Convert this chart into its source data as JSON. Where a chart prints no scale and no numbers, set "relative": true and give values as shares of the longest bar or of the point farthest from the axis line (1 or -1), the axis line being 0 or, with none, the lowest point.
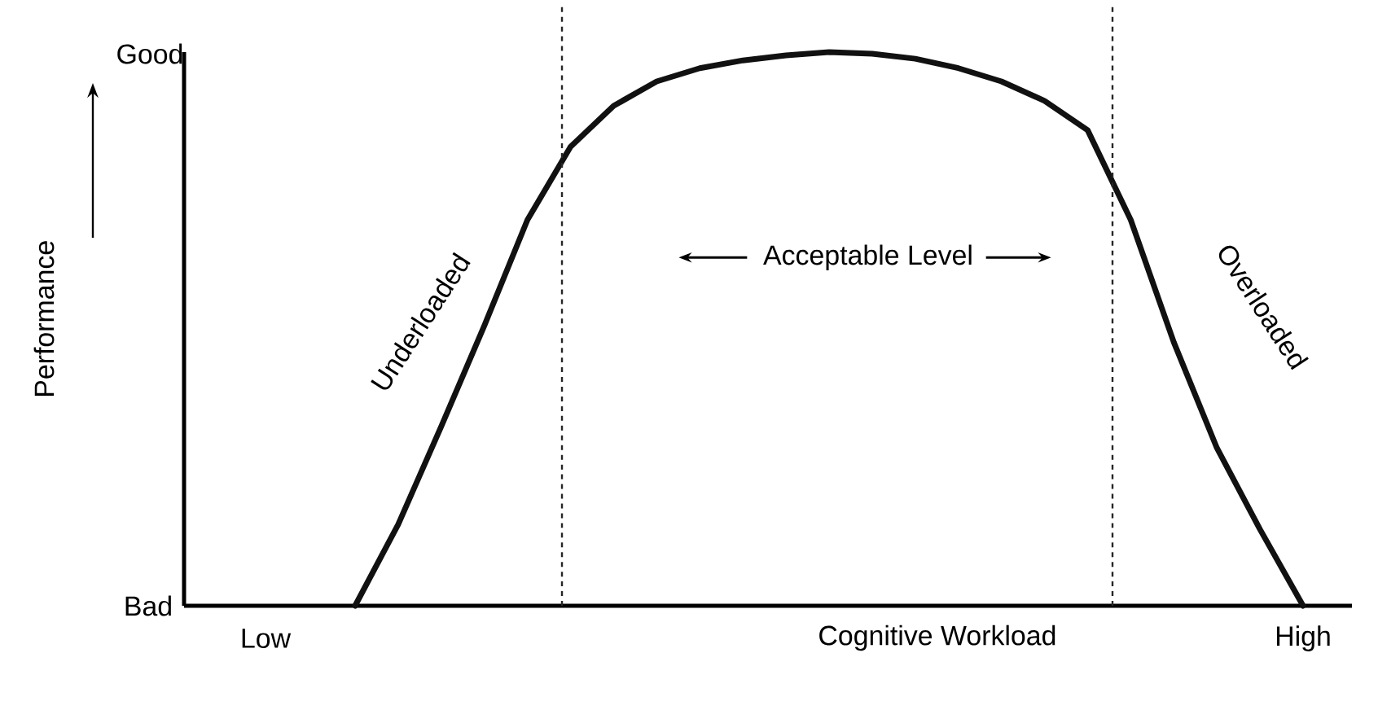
{
  "chart_data": {
    "type": "line",
    "relative": true,
    "xlabel": "Cognitive Workload",
    "categories": [
      null,
      null,
      null,
      null,
      null,
      null,
      null,
      null,
      null,
      null,
      null,
      null,
      null,
      null,
      null,
      null,
      null,
      null,
      null,
      null,
      null,
      null,
      null
    ],
    "series": [
      {
        "color": "#111111",
        "values": [
          0,
          0.147,
          0.324,
          0.506,
          0.697,
          0.829,
          0.903,
          0.947,
          0.971,
          0.985,
          0.994,
          1.0,
          0.997,
          0.988,
          0.971,
          0.947,
          0.912,
          0.859,
          0.697,
          0.476,
          0.285,
          0.138,
          0
        ]
      }
    ],
    "annotations": [
      "Good",
      "Bad",
      "Low",
      "High",
      "Acceptable Level",
      "Underloaded",
      "Overloaded",
      "Performance"
    ],
    "grid": false
  }
}
